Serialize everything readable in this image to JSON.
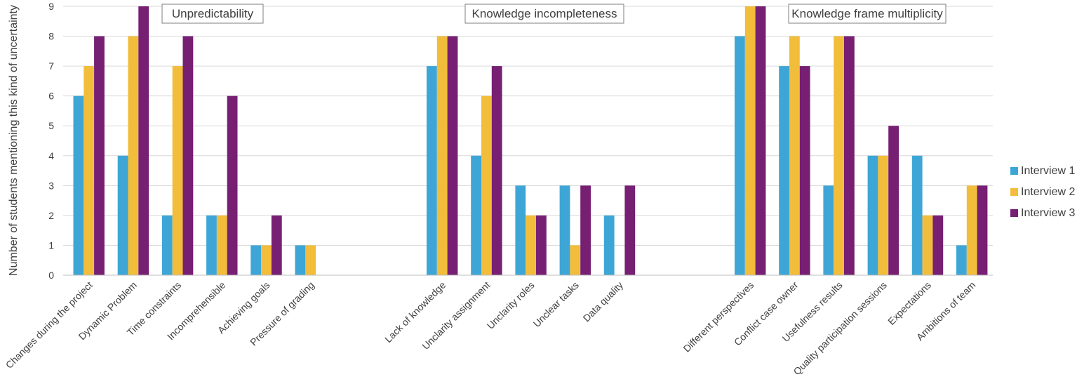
{
  "chart_data": {
    "type": "bar",
    "title": "",
    "xlabel": "",
    "ylabel": "Number of students mentioning this kind of uncertainty",
    "ylim": [
      0,
      9
    ],
    "yticks": [
      0,
      1,
      2,
      3,
      4,
      5,
      6,
      7,
      8,
      9
    ],
    "grid": true,
    "legend_position": "right",
    "groups": [
      {
        "label": "Unpredictability",
        "categories": [
          "Changes during the project",
          "Dynamic Problem",
          "Time constraints",
          "Incomprehensible",
          "Achieving goals",
          "Pressure of grading"
        ]
      },
      {
        "label": "Knowledge incompleteness",
        "categories": [
          "Lack of knowledge",
          "Unclarity assignment",
          "Unclarity roles",
          "Unclear tasks",
          "Data quality"
        ]
      },
      {
        "label": "Knowledge frame multiplicity",
        "categories": [
          "Different perspectives",
          "Conflict case owner",
          "Usefulness results",
          "Quality participation sessions",
          "Expectations",
          "Ambitions of team"
        ]
      }
    ],
    "series": [
      {
        "name": "Interview 1",
        "color": "#3ea6d6",
        "values": [
          [
            6,
            4,
            2,
            2,
            1,
            1
          ],
          [
            7,
            4,
            3,
            3,
            2
          ],
          [
            8,
            7,
            3,
            4,
            4,
            1
          ]
        ]
      },
      {
        "name": "Interview 2",
        "color": "#f2bd3b",
        "values": [
          [
            7,
            8,
            7,
            2,
            1,
            1
          ],
          [
            8,
            6,
            2,
            1,
            0
          ],
          [
            9,
            8,
            8,
            4,
            2,
            3
          ]
        ]
      },
      {
        "name": "Interview 3",
        "color": "#761f73",
        "values": [
          [
            8,
            9,
            8,
            6,
            2,
            0
          ],
          [
            8,
            7,
            2,
            3,
            3
          ],
          [
            9,
            7,
            8,
            5,
            2,
            3
          ]
        ]
      }
    ]
  }
}
